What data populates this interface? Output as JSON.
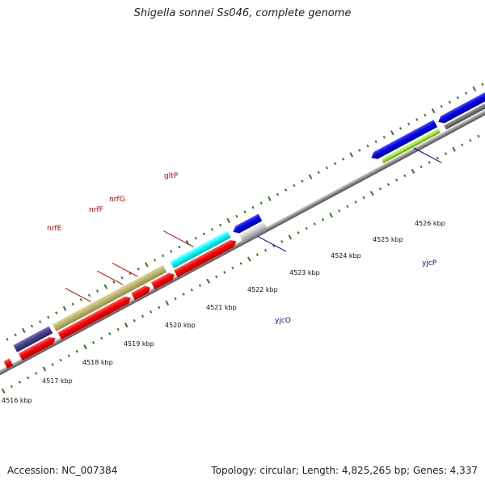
{
  "title": "Shigella sonnei Ss046, complete genome",
  "footer": {
    "accession": "Accession: NC_007384",
    "summary": "Topology: circular; Length: 4,825,265 bp; Genes: 4,337"
  },
  "position_labels": [
    "4516 kbp",
    "4517 kbp",
    "4518 kbp",
    "4519 kbp",
    "4520 kbp",
    "4521 kbp",
    "4522 kbp",
    "4523 kbp",
    "4524 kbp",
    "4525 kbp",
    "4526 kbp"
  ],
  "gene_labels": [
    {
      "name": "nrfE",
      "color": "#cc0000"
    },
    {
      "name": "nrfF",
      "color": "#cc0000"
    },
    {
      "name": "nrfG",
      "color": "#cc0000"
    },
    {
      "name": "gltP",
      "color": "#cc0000"
    },
    {
      "name": "yjcO",
      "color": "#0000aa"
    },
    {
      "name": "yjcP",
      "color": "#0000aa"
    }
  ],
  "colors": {
    "backbone": "#8a8a8a",
    "tick": "#2e7d1e",
    "red_feature": "#ff0000",
    "blue_feature": "#0000ee",
    "cyan_feature": "#00ffff",
    "olive_feature": "#bdb76b",
    "navy_feature": "#483d8b",
    "lime_feature": "#7fff00",
    "grey_feature": "#c8c8c8"
  }
}
